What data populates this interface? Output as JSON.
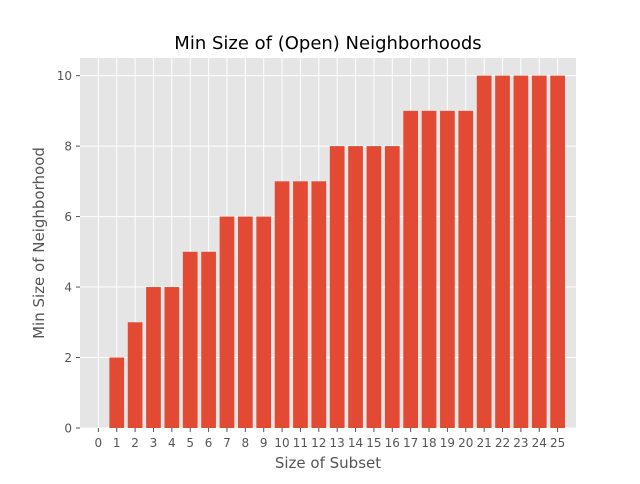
{
  "chart_data": {
    "type": "bar",
    "title": "Min Size of (Open) Neighborhoods",
    "xlabel": "Size of Subset",
    "ylabel": "Min Size of Neighborhood",
    "categories": [
      "0",
      "1",
      "2",
      "3",
      "4",
      "5",
      "6",
      "7",
      "8",
      "9",
      "10",
      "11",
      "12",
      "13",
      "14",
      "15",
      "16",
      "17",
      "18",
      "19",
      "20",
      "21",
      "22",
      "23",
      "24",
      "25"
    ],
    "values": [
      0,
      2,
      3,
      4,
      4,
      5,
      5,
      6,
      6,
      6,
      7,
      7,
      7,
      8,
      8,
      8,
      8,
      9,
      9,
      9,
      9,
      10,
      10,
      10,
      10,
      10
    ],
    "yticks": [
      "0",
      "2",
      "4",
      "6",
      "8",
      "10"
    ],
    "ylim": [
      0,
      10.5
    ],
    "grid": true,
    "colors": {
      "bar": "#E24A33",
      "plot_background": "#E5E5E5",
      "grid": "#FFFFFF",
      "text": "#555555",
      "title": "#000000"
    }
  }
}
